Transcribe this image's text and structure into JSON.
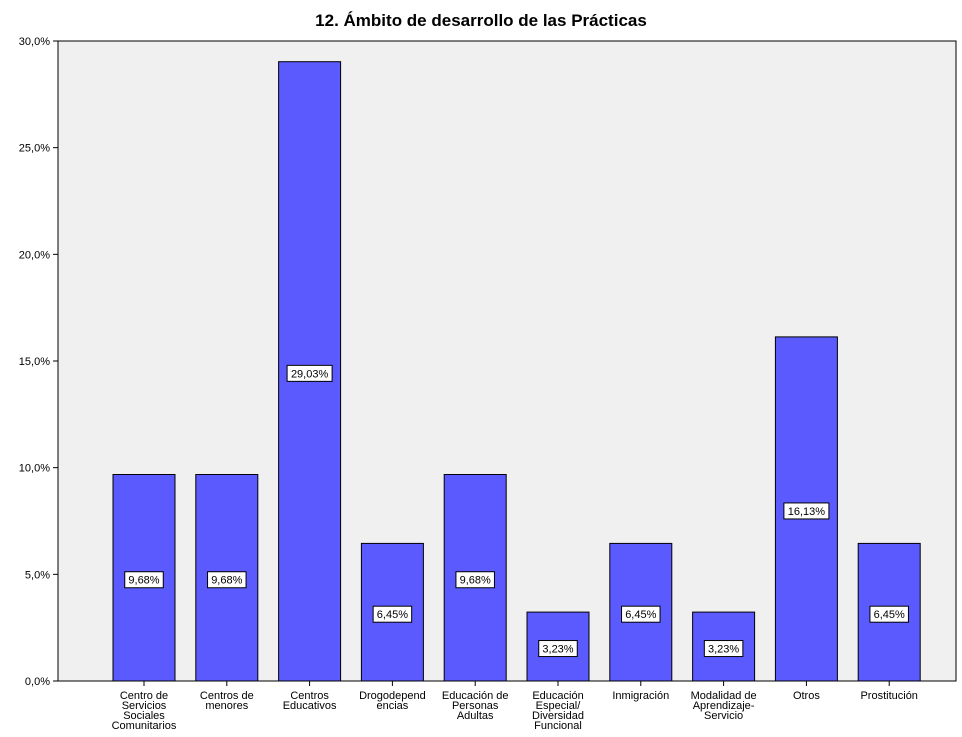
{
  "chart_data": {
    "type": "bar",
    "title": "12. Ámbito de desarrollo de las Prácticas",
    "xlabel": "",
    "ylabel": "",
    "ylim": [
      0,
      30
    ],
    "yticks": [
      "0,0%",
      "5,0%",
      "10,0%",
      "15,0%",
      "20,0%",
      "25,0%",
      "30,0%"
    ],
    "categories": [
      [
        "Centro de",
        "Servicios",
        "Sociales",
        "Comunitarios"
      ],
      [
        "Centros de",
        "menores"
      ],
      [
        "Centros",
        "Educativos"
      ],
      [
        "Drogodepend",
        "encias"
      ],
      [
        "Educación de",
        "Personas",
        "Adultas"
      ],
      [
        "Educación",
        "Especial/",
        "Diversidad",
        "Funcional"
      ],
      [
        "Inmigración"
      ],
      [
        "Modalidad de",
        "Aprendizaje-",
        "Servicio"
      ],
      [
        "Otros"
      ],
      [
        "Prostitución"
      ]
    ],
    "values": [
      9.68,
      9.68,
      29.03,
      6.45,
      9.68,
      3.23,
      6.45,
      3.23,
      16.13,
      6.45
    ],
    "data_labels": [
      "9,68%",
      "9,68%",
      "29,03%",
      "6,45%",
      "9,68%",
      "3,23%",
      "6,45%",
      "3,23%",
      "16,13%",
      "6,45%"
    ],
    "grid": false,
    "colors": {
      "bar": "#5a5aff",
      "plot_bg": "#f0f0f0"
    }
  }
}
